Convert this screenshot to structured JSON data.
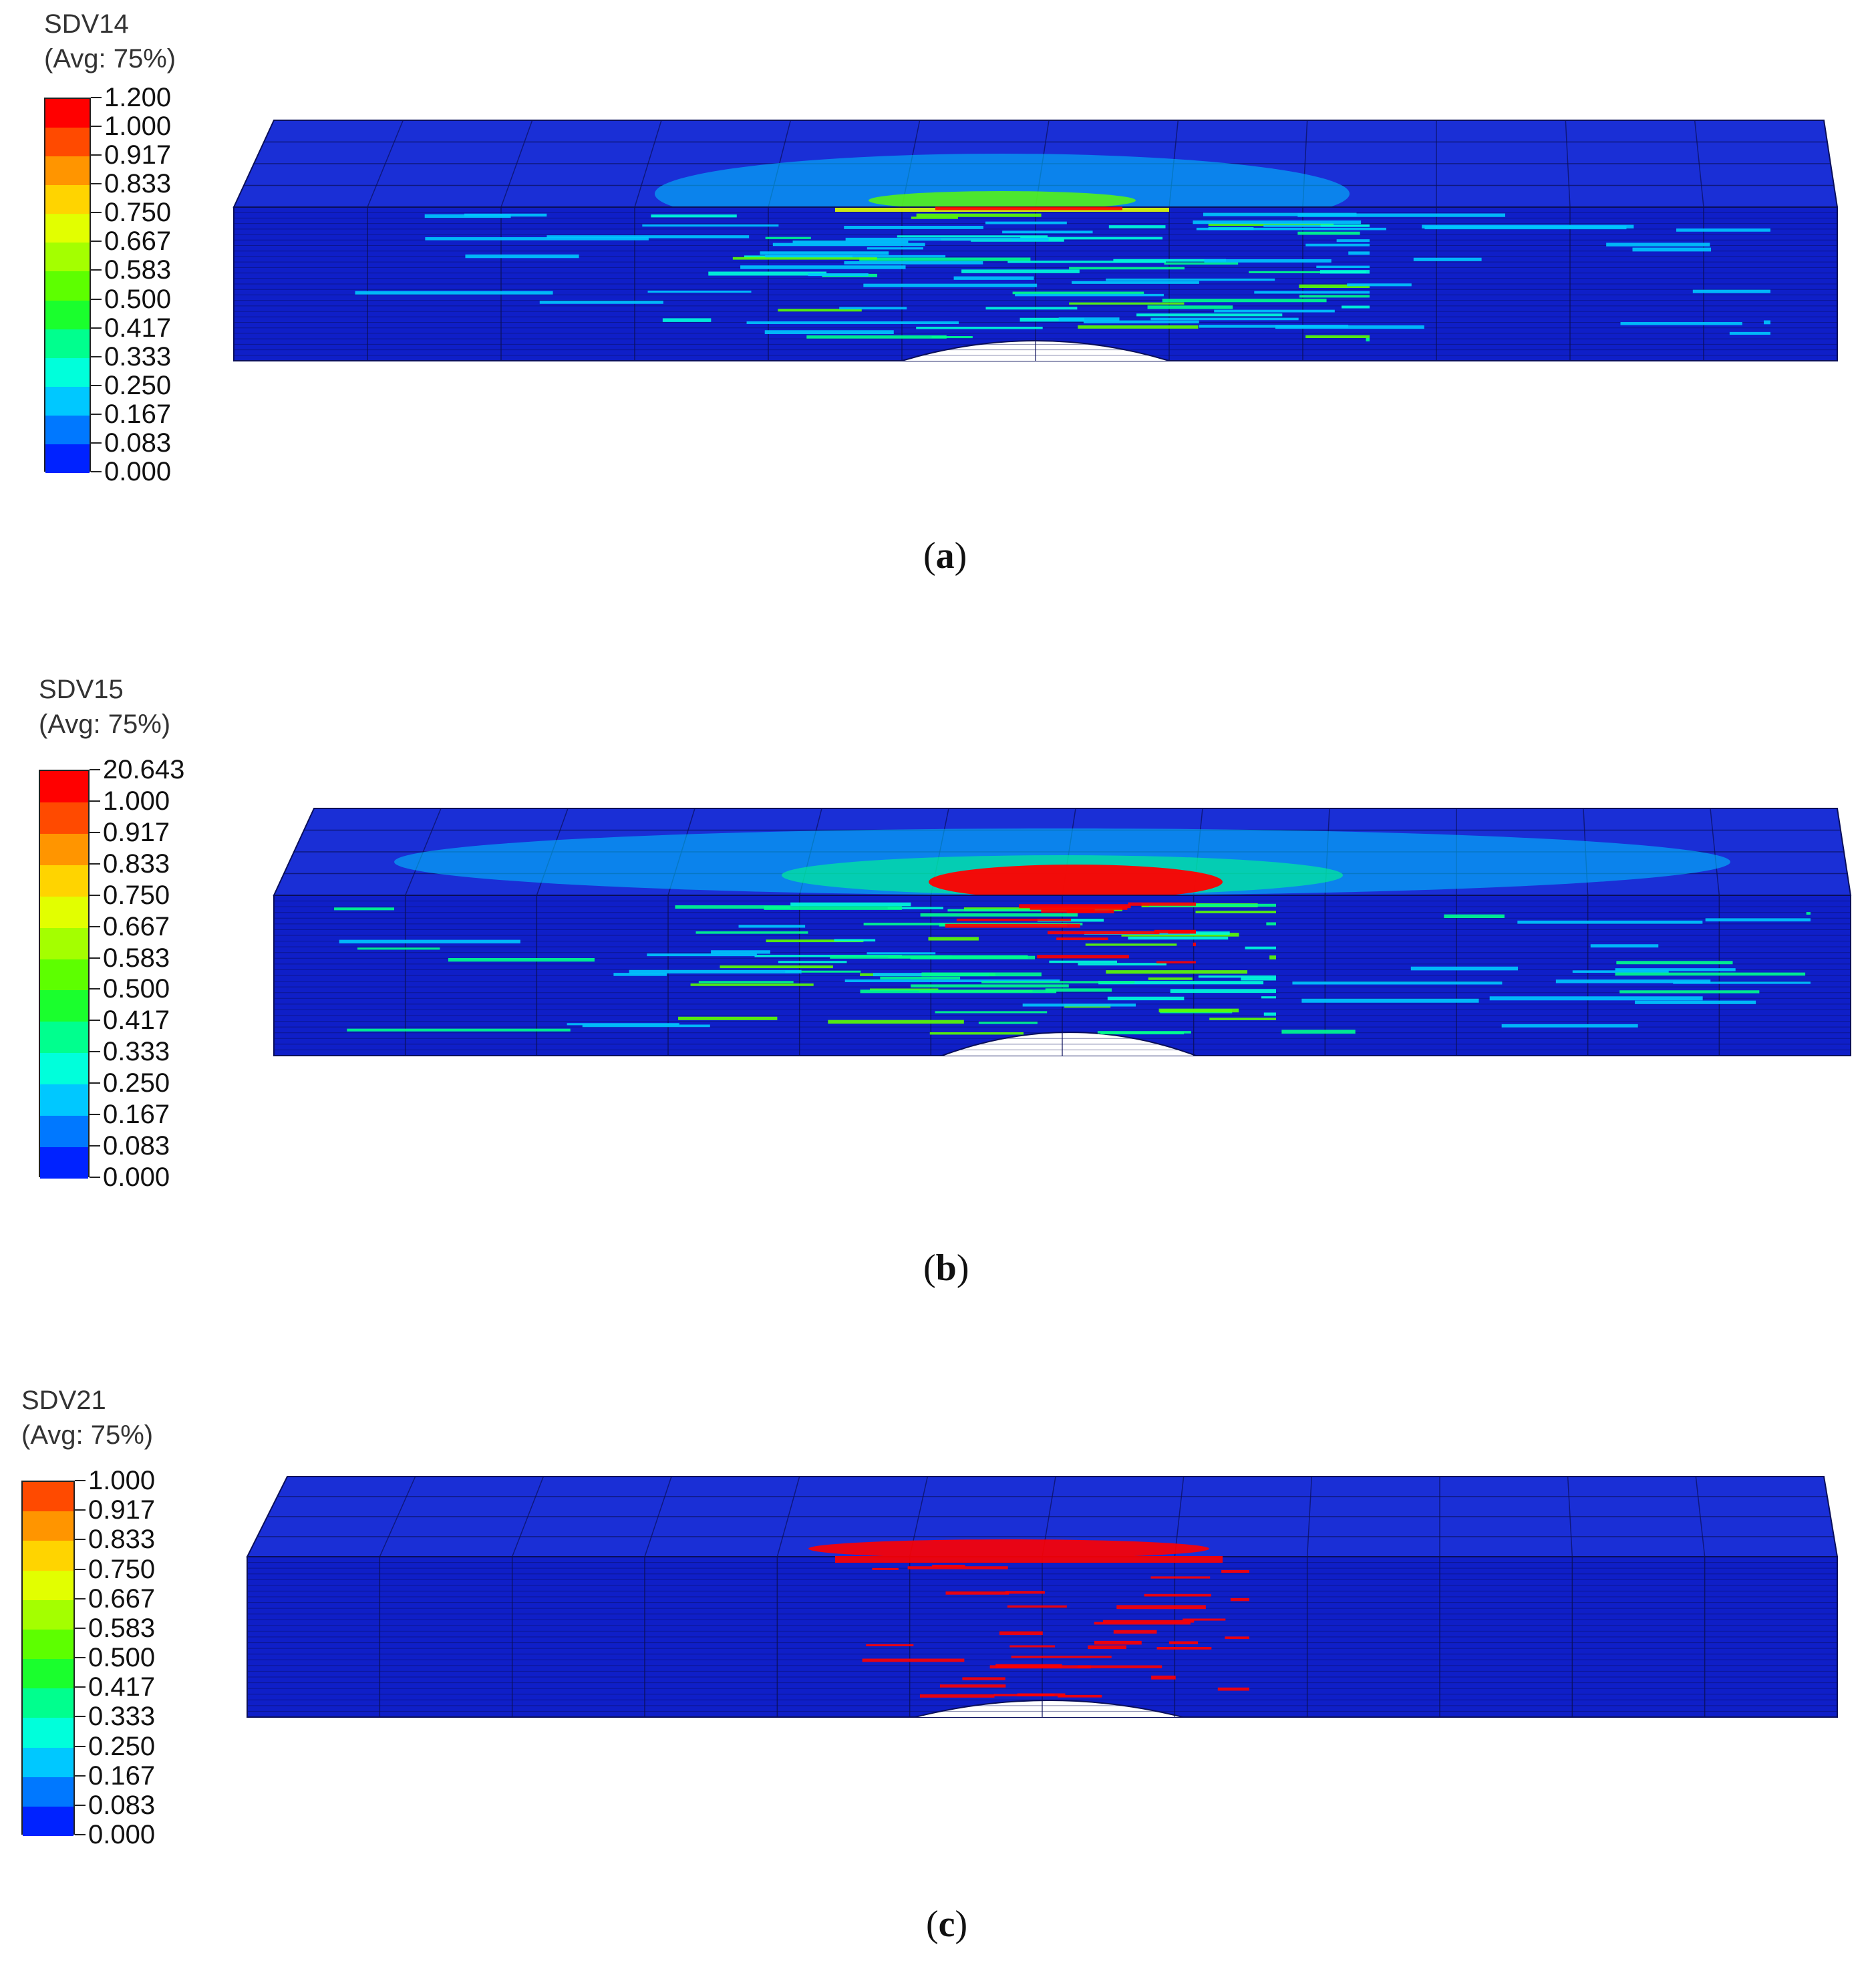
{
  "colors": {
    "legend_bands": [
      "#ff0000",
      "#ff4a00",
      "#ff9500",
      "#ffd400",
      "#e2ff00",
      "#a4ff00",
      "#5dff00",
      "#1aff2d",
      "#00ff8e",
      "#00ffdb",
      "#00c8ff",
      "#0078ff",
      "#0022ff"
    ],
    "mesh_base": "#0f1fc8",
    "mesh_top": "#1a2fd6",
    "mesh_line": "#0a0f5a"
  },
  "panels": [
    {
      "variable": "SDV14",
      "averaging": "(Avg: 75%)",
      "ticks": [
        "1.200",
        "1.000",
        "0.917",
        "0.833",
        "0.750",
        "0.667",
        "0.583",
        "0.500",
        "0.417",
        "0.333",
        "0.250",
        "0.167",
        "0.083",
        "0.000"
      ],
      "caption_letter": "a"
    },
    {
      "variable": "SDV15",
      "averaging": "(Avg: 75%)",
      "ticks": [
        "20.643",
        "1.000",
        "0.917",
        "0.833",
        "0.750",
        "0.667",
        "0.583",
        "0.500",
        "0.417",
        "0.333",
        "0.250",
        "0.167",
        "0.083",
        "0.000"
      ],
      "caption_letter": "b"
    },
    {
      "variable": "SDV21",
      "averaging": "(Avg: 75%)",
      "ticks": [
        "1.000",
        "0.917",
        "0.833",
        "0.750",
        "0.667",
        "0.583",
        "0.500",
        "0.417",
        "0.333",
        "0.250",
        "0.167",
        "0.083",
        "0.000"
      ],
      "caption_letter": "c"
    }
  ]
}
